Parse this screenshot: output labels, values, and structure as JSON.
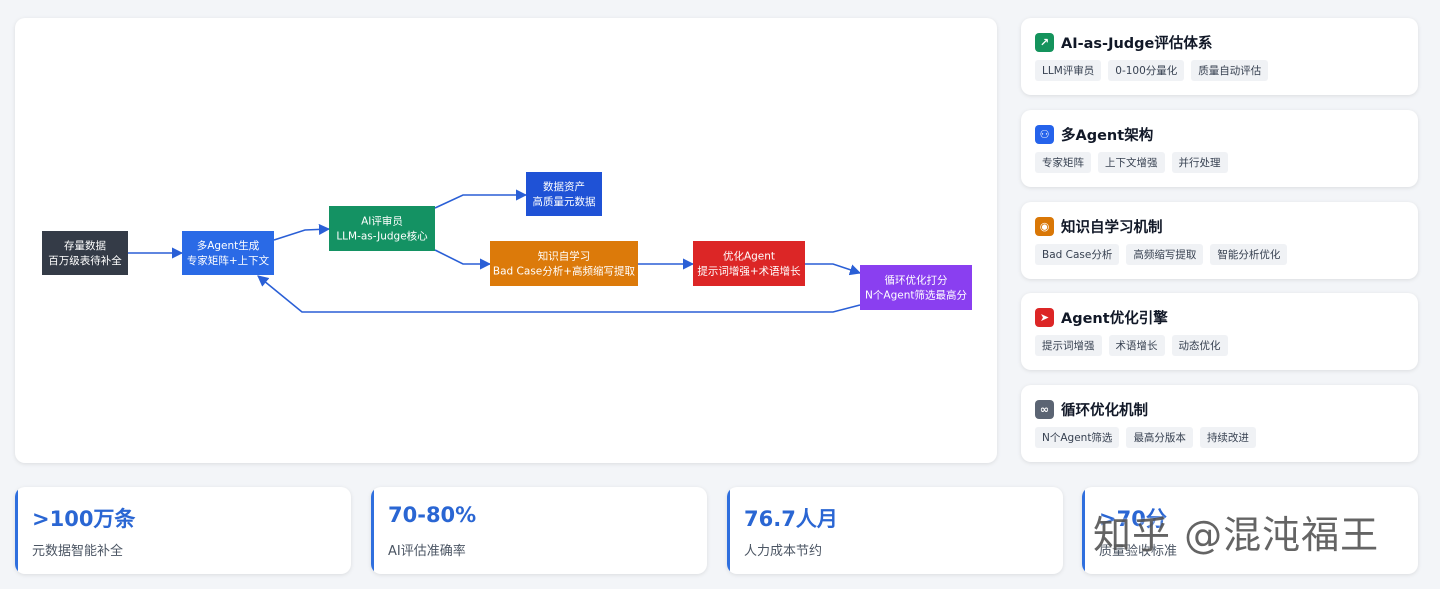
{
  "diagram": {
    "nodes": [
      {
        "id": "inventory",
        "lines": [
          "存量数据",
          "百万级表待补全"
        ],
        "color": "#343b47"
      },
      {
        "id": "multi-agent",
        "lines": [
          "多Agent生成",
          "专家矩阵+上下文"
        ],
        "color": "#2a6ae6"
      },
      {
        "id": "ai-judge",
        "lines": [
          "AI评审员",
          "LLM-as-Judge核心"
        ],
        "color": "#149263"
      },
      {
        "id": "data-asset",
        "lines": [
          "数据资产",
          "高质量元数据"
        ],
        "color": "#1f52d6"
      },
      {
        "id": "knowledge",
        "lines": [
          "知识自学习",
          "Bad Case分析+高频缩写提取"
        ],
        "color": "#dc7a0a"
      },
      {
        "id": "optimize-agent",
        "lines": [
          "优化Agent",
          "提示词增强+术语增长"
        ],
        "color": "#dc2626"
      },
      {
        "id": "loop-score",
        "lines": [
          "循环优化打分",
          "N个Agent筛选最高分"
        ],
        "color": "#8a3ff0"
      }
    ],
    "edge_color": "#2a5fd6"
  },
  "features": [
    {
      "title": "AI-as-Judge评估体系",
      "icon": "trend-up-icon",
      "glyph": "↗",
      "icon_color": "#14935c",
      "tags": [
        "LLM评审员",
        "0-100分量化",
        "质量自动评估"
      ]
    },
    {
      "title": "多Agent架构",
      "icon": "agents-icon",
      "glyph": "⚇",
      "icon_color": "#2563eb",
      "tags": [
        "专家矩阵",
        "上下文增强",
        "并行处理"
      ]
    },
    {
      "title": "知识自学习机制",
      "icon": "brain-icon",
      "glyph": "◉",
      "icon_color": "#d97706",
      "tags": [
        "Bad Case分析",
        "高频缩写提取",
        "智能分析优化"
      ]
    },
    {
      "title": "Agent优化引擎",
      "icon": "rocket-icon",
      "glyph": "➤",
      "icon_color": "#dc2626",
      "tags": [
        "提示词增强",
        "术语增长",
        "动态优化"
      ]
    },
    {
      "title": "循环优化机制",
      "icon": "infinity-icon",
      "glyph": "∞",
      "icon_color": "#5b6473",
      "tags": [
        "N个Agent筛选",
        "最高分版本",
        "持续改进"
      ]
    }
  ],
  "stats": [
    {
      "value": ">100万条",
      "label": "元数据智能补全"
    },
    {
      "value": "70-80%",
      "label": "AI评估准确率"
    },
    {
      "value": "76.7人月",
      "label": "人力成本节约"
    },
    {
      "value": ">70分",
      "label": "质量验收标准"
    }
  ],
  "watermark": "知乎 @混沌福王"
}
